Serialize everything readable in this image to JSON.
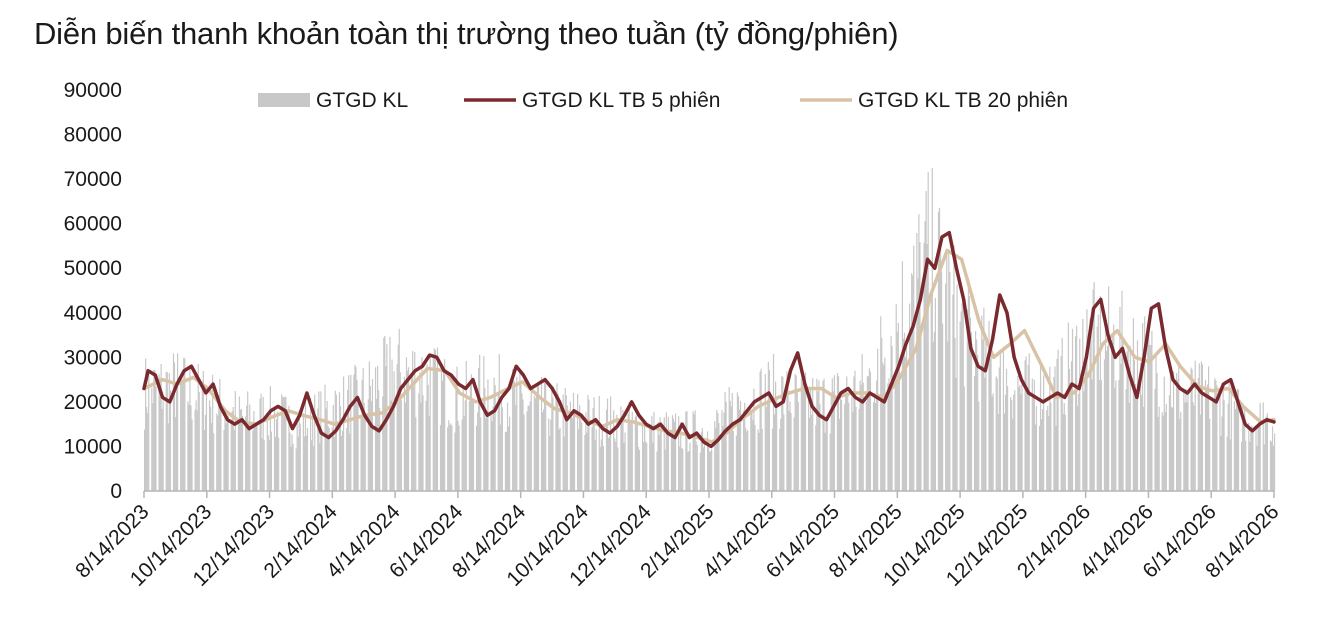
{
  "chart_data": {
    "type": "bar+line",
    "title": "Diễn biến thanh khoản toàn thị trường theo tuần (tỷ đồng/phiên)",
    "ylim": [
      0,
      90000
    ],
    "yticks": [
      0,
      10000,
      20000,
      30000,
      40000,
      50000,
      60000,
      70000,
      80000,
      90000
    ],
    "xtick_labels": [
      "8/14/2023",
      "10/14/2023",
      "12/14/2023",
      "2/14/2024",
      "4/14/2024",
      "6/14/2024",
      "8/14/2024",
      "10/14/2024",
      "12/14/2024",
      "2/14/2025",
      "4/14/2025",
      "6/14/2025",
      "8/14/2025",
      "10/14/2025",
      "12/14/2025",
      "2/14/2026",
      "4/14/2026",
      "6/14/2026",
      "8/14/2026"
    ],
    "x_range": [
      "2023-08-14",
      "2026-08-14"
    ],
    "legend_position": "top",
    "grid": false,
    "series": [
      {
        "name": "GTGD KL",
        "type": "bar",
        "color": "#c8c8c8",
        "points": [
          [
            "2023-08-14",
            23000
          ],
          [
            "2023-09-14",
            24000
          ],
          [
            "2023-10-14",
            21000
          ],
          [
            "2023-11-14",
            17000
          ],
          [
            "2023-12-14",
            17500
          ],
          [
            "2024-01-14",
            15500
          ],
          [
            "2024-02-14",
            19000
          ],
          [
            "2024-03-14",
            22000
          ],
          [
            "2024-04-14",
            28000
          ],
          [
            "2024-05-14",
            26000
          ],
          [
            "2024-06-14",
            21000
          ],
          [
            "2024-07-14",
            24000
          ],
          [
            "2024-08-14",
            20000
          ],
          [
            "2024-09-14",
            18500
          ],
          [
            "2024-10-14",
            17000
          ],
          [
            "2024-11-14",
            16000
          ],
          [
            "2024-12-14",
            14000
          ],
          [
            "2025-01-14",
            13500
          ],
          [
            "2025-02-14",
            14000
          ],
          [
            "2025-03-14",
            20000
          ],
          [
            "2025-04-14",
            23000
          ],
          [
            "2025-05-14",
            20000
          ],
          [
            "2025-06-14",
            21000
          ],
          [
            "2025-07-14",
            24000
          ],
          [
            "2025-08-14",
            40000
          ],
          [
            "2025-09-14",
            55000
          ],
          [
            "2025-10-14",
            38000
          ],
          [
            "2025-11-14",
            28000
          ],
          [
            "2025-12-14",
            23000
          ],
          [
            "2026-01-14",
            24000
          ],
          [
            "2026-02-14",
            35000
          ],
          [
            "2026-03-14",
            34000
          ],
          [
            "2026-04-14",
            30000
          ],
          [
            "2026-05-14",
            22000
          ],
          [
            "2026-06-14",
            22000
          ],
          [
            "2026-07-14",
            17000
          ],
          [
            "2026-08-14",
            16000
          ]
        ]
      },
      {
        "name": "GTGD KL TB 5 phiên",
        "type": "line",
        "color": "#7a2a2e",
        "points": [
          [
            "2023-08-14",
            23000
          ],
          [
            "2023-08-18",
            27000
          ],
          [
            "2023-08-25",
            26000
          ],
          [
            "2023-09-01",
            21000
          ],
          [
            "2023-09-08",
            20000
          ],
          [
            "2023-09-15",
            24000
          ],
          [
            "2023-09-22",
            27000
          ],
          [
            "2023-09-29",
            28000
          ],
          [
            "2023-10-06",
            25000
          ],
          [
            "2023-10-13",
            22000
          ],
          [
            "2023-10-20",
            24000
          ],
          [
            "2023-10-27",
            19000
          ],
          [
            "2023-11-03",
            16000
          ],
          [
            "2023-11-10",
            15000
          ],
          [
            "2023-11-17",
            16000
          ],
          [
            "2023-11-24",
            14000
          ],
          [
            "2023-12-01",
            15000
          ],
          [
            "2023-12-08",
            16000
          ],
          [
            "2023-12-15",
            18000
          ],
          [
            "2023-12-22",
            19000
          ],
          [
            "2023-12-29",
            18000
          ],
          [
            "2024-01-05",
            14000
          ],
          [
            "2024-01-12",
            17000
          ],
          [
            "2024-01-19",
            22000
          ],
          [
            "2024-01-26",
            17000
          ],
          [
            "2024-02-02",
            13000
          ],
          [
            "2024-02-09",
            12000
          ],
          [
            "2024-02-16",
            13500
          ],
          [
            "2024-02-23",
            16000
          ],
          [
            "2024-03-01",
            19000
          ],
          [
            "2024-03-08",
            21000
          ],
          [
            "2024-03-15",
            17000
          ],
          [
            "2024-03-22",
            14500
          ],
          [
            "2024-03-29",
            13500
          ],
          [
            "2024-04-05",
            16000
          ],
          [
            "2024-04-12",
            19000
          ],
          [
            "2024-04-19",
            23000
          ],
          [
            "2024-04-26",
            25000
          ],
          [
            "2024-05-03",
            27000
          ],
          [
            "2024-05-10",
            28000
          ],
          [
            "2024-05-17",
            30500
          ],
          [
            "2024-05-24",
            30000
          ],
          [
            "2024-05-31",
            27000
          ],
          [
            "2024-06-07",
            26000
          ],
          [
            "2024-06-14",
            24000
          ],
          [
            "2024-06-21",
            23000
          ],
          [
            "2024-06-28",
            25000
          ],
          [
            "2024-07-05",
            20000
          ],
          [
            "2024-07-12",
            17000
          ],
          [
            "2024-07-19",
            18000
          ],
          [
            "2024-07-26",
            21000
          ],
          [
            "2024-08-02",
            23000
          ],
          [
            "2024-08-09",
            28000
          ],
          [
            "2024-08-16",
            26000
          ],
          [
            "2024-08-23",
            23000
          ],
          [
            "2024-08-30",
            24000
          ],
          [
            "2024-09-06",
            25000
          ],
          [
            "2024-09-13",
            23000
          ],
          [
            "2024-09-20",
            20000
          ],
          [
            "2024-09-27",
            16000
          ],
          [
            "2024-10-04",
            18000
          ],
          [
            "2024-10-11",
            17000
          ],
          [
            "2024-10-18",
            15000
          ],
          [
            "2024-10-25",
            16000
          ],
          [
            "2024-11-01",
            14000
          ],
          [
            "2024-11-08",
            13000
          ],
          [
            "2024-11-15",
            14500
          ],
          [
            "2024-11-22",
            17000
          ],
          [
            "2024-11-29",
            20000
          ],
          [
            "2024-12-06",
            17000
          ],
          [
            "2024-12-13",
            15000
          ],
          [
            "2024-12-20",
            14000
          ],
          [
            "2024-12-27",
            15000
          ],
          [
            "2025-01-03",
            13000
          ],
          [
            "2025-01-10",
            12000
          ],
          [
            "2025-01-17",
            15000
          ],
          [
            "2025-01-24",
            12000
          ],
          [
            "2025-01-31",
            13000
          ],
          [
            "2025-02-07",
            11000
          ],
          [
            "2025-02-14",
            10000
          ],
          [
            "2025-02-21",
            11500
          ],
          [
            "2025-02-28",
            13500
          ],
          [
            "2025-03-07",
            15000
          ],
          [
            "2025-03-14",
            16000
          ],
          [
            "2025-03-21",
            18000
          ],
          [
            "2025-03-28",
            20000
          ],
          [
            "2025-04-04",
            21000
          ],
          [
            "2025-04-11",
            22000
          ],
          [
            "2025-04-18",
            19000
          ],
          [
            "2025-04-25",
            20000
          ],
          [
            "2025-05-02",
            27000
          ],
          [
            "2025-05-09",
            31000
          ],
          [
            "2025-05-16",
            24000
          ],
          [
            "2025-05-23",
            19000
          ],
          [
            "2025-05-30",
            17000
          ],
          [
            "2025-06-06",
            16000
          ],
          [
            "2025-06-13",
            19000
          ],
          [
            "2025-06-20",
            22000
          ],
          [
            "2025-06-27",
            23000
          ],
          [
            "2025-07-04",
            21000
          ],
          [
            "2025-07-11",
            20000
          ],
          [
            "2025-07-18",
            22000
          ],
          [
            "2025-07-25",
            21000
          ],
          [
            "2025-08-01",
            20000
          ],
          [
            "2025-08-08",
            24000
          ],
          [
            "2025-08-15",
            28000
          ],
          [
            "2025-08-22",
            33000
          ],
          [
            "2025-08-29",
            37000
          ],
          [
            "2025-09-05",
            43000
          ],
          [
            "2025-09-12",
            52000
          ],
          [
            "2025-09-19",
            50000
          ],
          [
            "2025-09-26",
            57000
          ],
          [
            "2025-10-03",
            58000
          ],
          [
            "2025-10-10",
            50000
          ],
          [
            "2025-10-17",
            43000
          ],
          [
            "2025-10-24",
            32000
          ],
          [
            "2025-10-31",
            28000
          ],
          [
            "2025-11-07",
            27000
          ],
          [
            "2025-11-14",
            34000
          ],
          [
            "2025-11-21",
            44000
          ],
          [
            "2025-11-28",
            40000
          ],
          [
            "2025-12-05",
            30000
          ],
          [
            "2025-12-12",
            25000
          ],
          [
            "2025-12-19",
            22000
          ],
          [
            "2025-12-26",
            21000
          ],
          [
            "2026-01-02",
            20000
          ],
          [
            "2026-01-09",
            21000
          ],
          [
            "2026-01-16",
            22000
          ],
          [
            "2026-01-23",
            21000
          ],
          [
            "2026-01-30",
            24000
          ],
          [
            "2026-02-06",
            23000
          ],
          [
            "2026-02-13",
            30000
          ],
          [
            "2026-02-20",
            41000
          ],
          [
            "2026-02-27",
            43000
          ],
          [
            "2026-03-06",
            35000
          ],
          [
            "2026-03-13",
            30000
          ],
          [
            "2026-03-20",
            32000
          ],
          [
            "2026-03-27",
            26000
          ],
          [
            "2026-04-03",
            21000
          ],
          [
            "2026-04-10",
            30000
          ],
          [
            "2026-04-17",
            41000
          ],
          [
            "2026-04-24",
            42000
          ],
          [
            "2026-05-01",
            32000
          ],
          [
            "2026-05-08",
            25000
          ],
          [
            "2026-05-15",
            23000
          ],
          [
            "2026-05-22",
            22000
          ],
          [
            "2026-05-29",
            24000
          ],
          [
            "2026-06-05",
            22000
          ],
          [
            "2026-06-12",
            21000
          ],
          [
            "2026-06-19",
            20000
          ],
          [
            "2026-06-26",
            24000
          ],
          [
            "2026-07-03",
            25000
          ],
          [
            "2026-07-10",
            20000
          ],
          [
            "2026-07-17",
            15000
          ],
          [
            "2026-07-24",
            13500
          ],
          [
            "2026-07-31",
            15000
          ],
          [
            "2026-08-07",
            16000
          ],
          [
            "2026-08-14",
            15500
          ]
        ]
      },
      {
        "name": "GTGD KL TB 20 phiên",
        "type": "line",
        "color": "#d8c3a6",
        "points": [
          [
            "2023-08-14",
            23000
          ],
          [
            "2023-09-01",
            25000
          ],
          [
            "2023-09-15",
            24000
          ],
          [
            "2023-10-01",
            25500
          ],
          [
            "2023-10-15",
            23000
          ],
          [
            "2023-11-01",
            18000
          ],
          [
            "2023-11-15",
            15500
          ],
          [
            "2023-12-01",
            15000
          ],
          [
            "2023-12-15",
            16500
          ],
          [
            "2024-01-01",
            18000
          ],
          [
            "2024-01-15",
            17000
          ],
          [
            "2024-02-01",
            16000
          ],
          [
            "2024-02-15",
            15000
          ],
          [
            "2024-03-01",
            16000
          ],
          [
            "2024-03-15",
            17000
          ],
          [
            "2024-04-01",
            17500
          ],
          [
            "2024-04-15",
            20000
          ],
          [
            "2024-05-01",
            24000
          ],
          [
            "2024-05-15",
            27500
          ],
          [
            "2024-06-01",
            27000
          ],
          [
            "2024-06-15",
            22000
          ],
          [
            "2024-07-01",
            20000
          ],
          [
            "2024-07-15",
            21000
          ],
          [
            "2024-08-01",
            23000
          ],
          [
            "2024-08-15",
            24500
          ],
          [
            "2024-09-01",
            21000
          ],
          [
            "2024-09-15",
            18500
          ],
          [
            "2024-10-01",
            17500
          ],
          [
            "2024-10-15",
            16000
          ],
          [
            "2024-11-01",
            14500
          ],
          [
            "2024-11-15",
            16000
          ],
          [
            "2024-12-01",
            15500
          ],
          [
            "2024-12-15",
            14500
          ],
          [
            "2025-01-01",
            13500
          ],
          [
            "2025-01-15",
            13000
          ],
          [
            "2025-02-01",
            12000
          ],
          [
            "2025-02-15",
            11000
          ],
          [
            "2025-03-01",
            13000
          ],
          [
            "2025-03-15",
            16000
          ],
          [
            "2025-04-01",
            19000
          ],
          [
            "2025-04-15",
            20500
          ],
          [
            "2025-05-01",
            22000
          ],
          [
            "2025-05-15",
            23000
          ],
          [
            "2025-06-01",
            23000
          ],
          [
            "2025-06-15",
            21000
          ],
          [
            "2025-07-01",
            22000
          ],
          [
            "2025-07-15",
            22000
          ],
          [
            "2025-08-01",
            21000
          ],
          [
            "2025-08-15",
            25000
          ],
          [
            "2025-09-01",
            32000
          ],
          [
            "2025-09-15",
            44000
          ],
          [
            "2025-10-01",
            54000
          ],
          [
            "2025-10-15",
            52000
          ],
          [
            "2025-11-01",
            38000
          ],
          [
            "2025-11-15",
            30000
          ],
          [
            "2025-12-01",
            33000
          ],
          [
            "2025-12-15",
            36000
          ],
          [
            "2026-01-01",
            28000
          ],
          [
            "2026-01-15",
            21000
          ],
          [
            "2026-02-01",
            22000
          ],
          [
            "2026-02-15",
            26000
          ],
          [
            "2026-03-01",
            33000
          ],
          [
            "2026-03-15",
            36000
          ],
          [
            "2026-04-01",
            30000
          ],
          [
            "2026-04-15",
            29000
          ],
          [
            "2026-05-01",
            33000
          ],
          [
            "2026-05-15",
            28000
          ],
          [
            "2026-06-01",
            23500
          ],
          [
            "2026-06-15",
            22500
          ],
          [
            "2026-07-01",
            23000
          ],
          [
            "2026-07-15",
            19000
          ],
          [
            "2026-08-01",
            15500
          ],
          [
            "2026-08-14",
            16000
          ]
        ]
      }
    ]
  }
}
